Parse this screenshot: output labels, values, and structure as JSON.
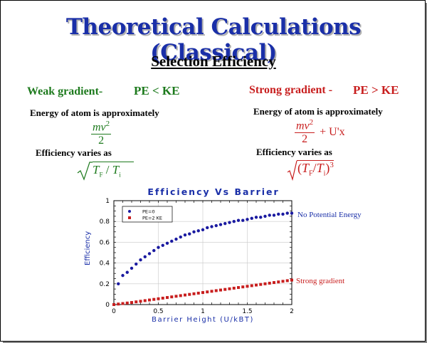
{
  "title": "Theoretical Calculations (Classical)",
  "subtitle": "Selection Efficiency",
  "weak": {
    "heading": "Weak gradient-",
    "condition": "PE < KE",
    "energy_text": "Energy of atom is approximately",
    "energy_num": "mv",
    "energy_sup": "2",
    "energy_den": "2",
    "efficiency_text": "Efficiency varies as",
    "formula_tf": "T",
    "formula_tf_sub": "F",
    "formula_slash": "/",
    "formula_ti": "T",
    "formula_ti_sub": "i"
  },
  "strong": {
    "heading": "Strong gradient -",
    "condition": "PE > KE",
    "energy_text": "Energy of atom is approximately",
    "energy_num": "mv",
    "energy_sup": "2",
    "energy_den": "2",
    "energy_extra": "+ U'x",
    "efficiency_text": "Efficiency varies as",
    "formula_open": "(",
    "formula_tf": "T",
    "formula_tf_sub": "F",
    "formula_slash": "/",
    "formula_ti": "T",
    "formula_ti_sub": "i",
    "formula_close": ")",
    "formula_exp": "3"
  },
  "annotations": {
    "no_pe": "No Potential Energy",
    "strong": "Strong gradient"
  },
  "colors": {
    "title": "#1a2fa8",
    "green": "#1d7a1d",
    "red": "#c81e1e",
    "series_pe0": "#1a1aa0",
    "series_pe2": "#c81e1e"
  },
  "chart_data": {
    "type": "scatter",
    "title": "Efficiency Vs Barrier",
    "xlabel": "Barrier Height (U/kBT)",
    "ylabel": "Efficiency",
    "xlim": [
      0,
      2
    ],
    "ylim": [
      0,
      1
    ],
    "xticks": [
      "0",
      "0.5",
      "1",
      "1.5",
      "2"
    ],
    "yticks": [
      "0",
      "0.2",
      "0.4",
      "0.6",
      "0.8",
      "1"
    ],
    "grid": true,
    "legend_position": "top-left",
    "series": [
      {
        "name": "PE=0",
        "marker": "circle",
        "x": [
          0.05,
          0.1,
          0.15,
          0.2,
          0.25,
          0.3,
          0.35,
          0.4,
          0.45,
          0.5,
          0.55,
          0.6,
          0.65,
          0.7,
          0.75,
          0.8,
          0.85,
          0.9,
          0.95,
          1.0,
          1.05,
          1.1,
          1.15,
          1.2,
          1.25,
          1.3,
          1.35,
          1.4,
          1.45,
          1.5,
          1.55,
          1.6,
          1.65,
          1.7,
          1.75,
          1.8,
          1.85,
          1.9,
          1.95,
          2.0
        ],
        "y": [
          0.2,
          0.28,
          0.31,
          0.35,
          0.39,
          0.43,
          0.46,
          0.49,
          0.52,
          0.55,
          0.57,
          0.59,
          0.61,
          0.63,
          0.65,
          0.67,
          0.68,
          0.7,
          0.71,
          0.72,
          0.74,
          0.75,
          0.76,
          0.77,
          0.78,
          0.79,
          0.8,
          0.81,
          0.81,
          0.82,
          0.83,
          0.84,
          0.84,
          0.85,
          0.86,
          0.86,
          0.87,
          0.87,
          0.88,
          0.88
        ]
      },
      {
        "name": "PE=2 KE",
        "marker": "square",
        "x": [
          0.0,
          0.05,
          0.1,
          0.15,
          0.2,
          0.25,
          0.3,
          0.35,
          0.4,
          0.45,
          0.5,
          0.55,
          0.6,
          0.65,
          0.7,
          0.75,
          0.8,
          0.85,
          0.9,
          0.95,
          1.0,
          1.05,
          1.1,
          1.15,
          1.2,
          1.25,
          1.3,
          1.35,
          1.4,
          1.45,
          1.5,
          1.55,
          1.6,
          1.65,
          1.7,
          1.75,
          1.8,
          1.85,
          1.9,
          1.95,
          2.0
        ],
        "y": [
          0.0,
          0.005,
          0.01,
          0.015,
          0.02,
          0.026,
          0.032,
          0.038,
          0.044,
          0.05,
          0.056,
          0.062,
          0.068,
          0.074,
          0.08,
          0.086,
          0.092,
          0.098,
          0.104,
          0.11,
          0.116,
          0.122,
          0.128,
          0.134,
          0.14,
          0.146,
          0.152,
          0.158,
          0.164,
          0.17,
          0.176,
          0.182,
          0.188,
          0.194,
          0.2,
          0.206,
          0.212,
          0.218,
          0.224,
          0.23,
          0.236
        ]
      }
    ]
  }
}
